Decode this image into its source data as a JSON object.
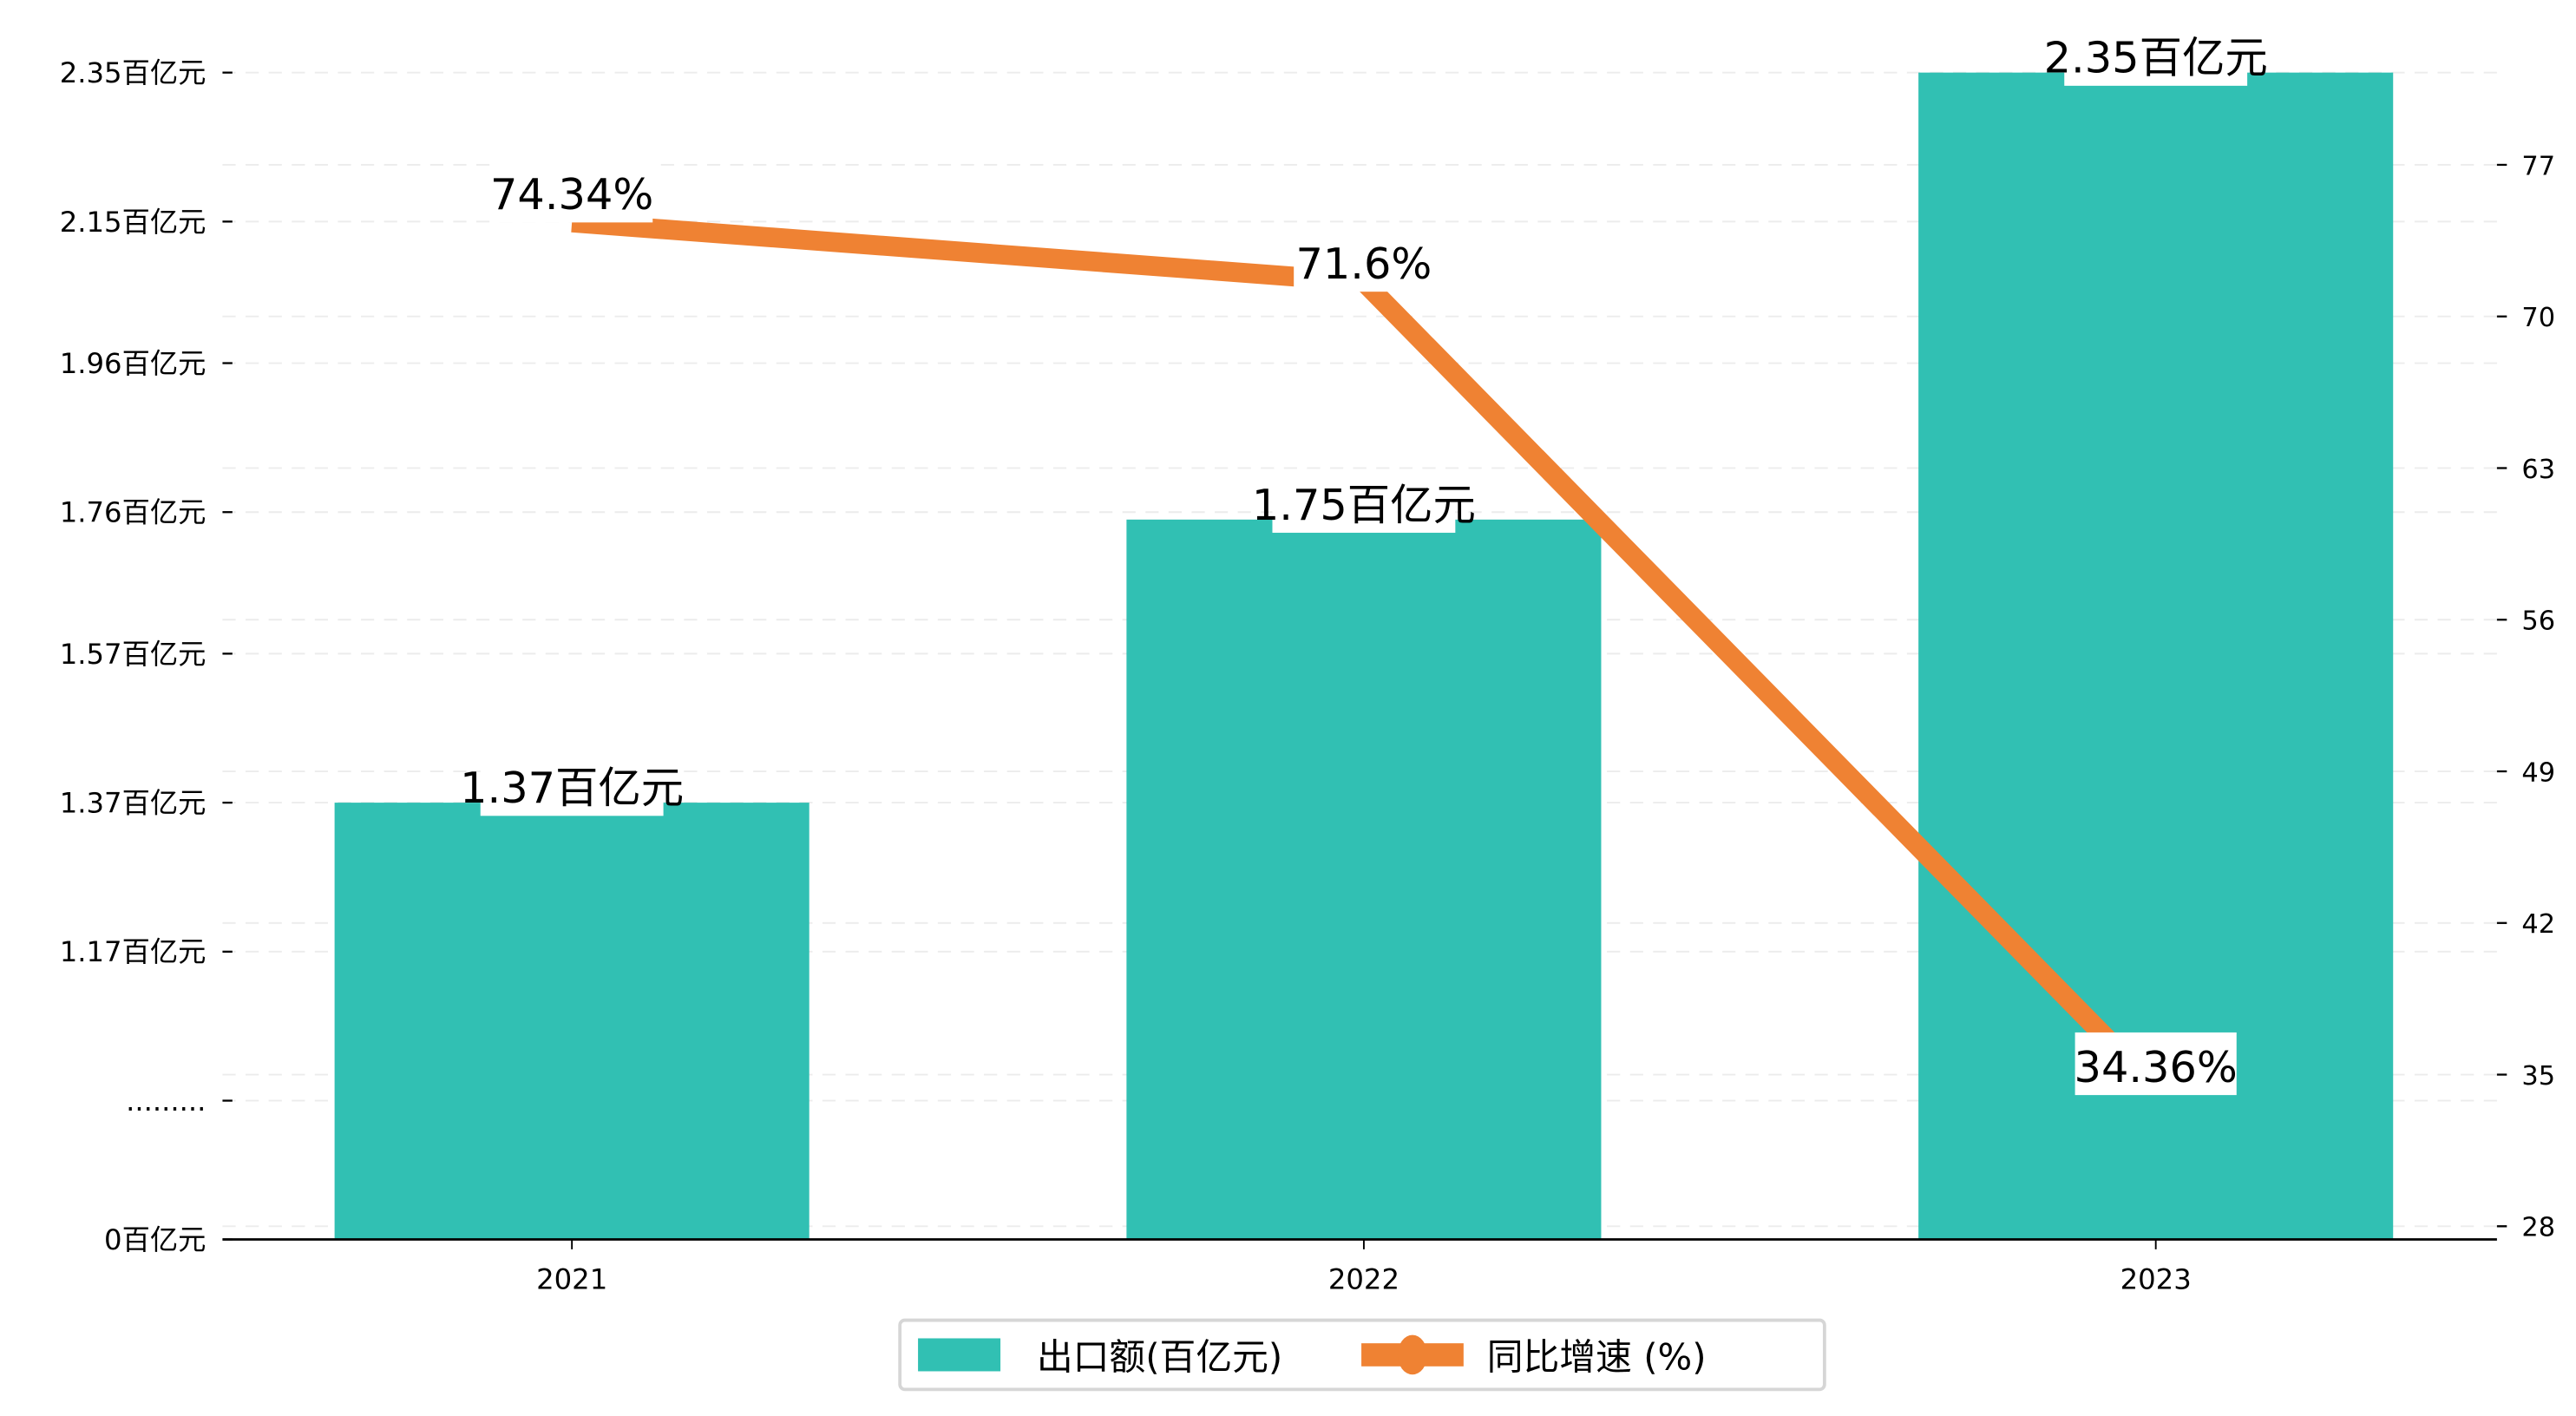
{
  "chart_data": {
    "type": "bar+line",
    "categories": [
      "2021",
      "2022",
      "2023"
    ],
    "series": [
      {
        "name": "出口额(百亿元)",
        "type": "bar",
        "axis": "left",
        "values": [
          1.37,
          1.75,
          2.35
        ],
        "labels": [
          "1.37百亿元",
          "1.75百亿元",
          "2.35百亿元"
        ],
        "color": "#31c0b3"
      },
      {
        "name": "同比增速 (%)",
        "type": "line",
        "axis": "right",
        "values": [
          74.34,
          71.6,
          34.36
        ],
        "labels": [
          "74.34%",
          "71.6%",
          "34.36%"
        ],
        "color": "#ef8233"
      }
    ],
    "left_axis": {
      "ticks": [
        {
          "value": 2.35,
          "label": "2.35百亿元"
        },
        {
          "value": 2.15,
          "label": "2.15百亿元"
        },
        {
          "value": 1.96,
          "label": "1.96百亿元"
        },
        {
          "value": 1.76,
          "label": "1.76百亿元"
        },
        {
          "value": 1.57,
          "label": "1.57百亿元"
        },
        {
          "value": 1.37,
          "label": "1.37百亿元"
        },
        {
          "value": 1.17,
          "label": "1.17百亿元"
        },
        {
          "value": 0.97,
          "label": "........."
        },
        {
          "value": 0,
          "label": "0百亿元"
        }
      ],
      "note": "broken axis between 0 and 0.97"
    },
    "right_axis": {
      "ticks": [
        28,
        35,
        42,
        49,
        56,
        63,
        70,
        77
      ],
      "range": [
        28,
        81
      ]
    },
    "grid": true,
    "legend_position": "bottom-center"
  }
}
